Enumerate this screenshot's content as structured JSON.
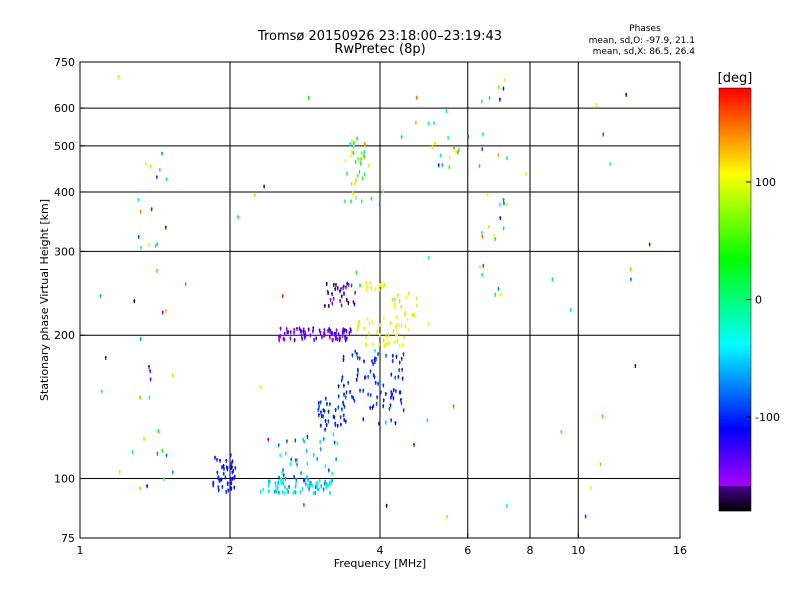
{
  "header": {
    "title_line1": "Tromsø 20150926 23:18:00–23:19:43",
    "title_line2": "RwPretec (8p)"
  },
  "stats": {
    "label": "Phases",
    "line_o": "mean, sd,O:  -97.9, 21.1",
    "line_x": "mean, sd,X:   86.5, 26.4"
  },
  "colorbar": {
    "label": "[deg]",
    "min": -180,
    "max": 180,
    "ticks": [
      "100",
      "0",
      "-100"
    ],
    "tick_values": [
      100,
      0,
      -100
    ]
  },
  "chart_data": {
    "type": "scatter",
    "xlabel": "Frequency [MHz]",
    "ylabel": "Stationary phase Virtual Height [km]",
    "xscale": "log2",
    "yscale": "log",
    "xlim": [
      1,
      16
    ],
    "ylim": [
      75,
      750
    ],
    "xticks": [
      1,
      2,
      4,
      6,
      8,
      10,
      16
    ],
    "xtick_labels": [
      "1",
      "2",
      "4",
      "6",
      "8",
      "10",
      "16"
    ],
    "yticks": [
      75,
      100,
      200,
      300,
      400,
      500,
      600,
      750
    ],
    "ytick_labels": [
      "75",
      "100",
      "200",
      "300",
      "400",
      "500",
      "600",
      "750"
    ],
    "x_gridlines": [
      2,
      4,
      6,
      8,
      10
    ],
    "y_gridlines": [
      100,
      200,
      300,
      400,
      500,
      600
    ],
    "clusters": [
      {
        "x": [
          1.85,
          2.05
        ],
        "y": [
          92,
          112
        ],
        "phase": [
          -120,
          -90
        ],
        "n": 45
      },
      {
        "x": [
          2.3,
          3.2
        ],
        "y": [
          93,
          100
        ],
        "phase": [
          -80,
          -10
        ],
        "n": 70
      },
      {
        "x": [
          2.5,
          3.3
        ],
        "y": [
          97,
          125
        ],
        "phase": [
          -100,
          -20
        ],
        "n": 40
      },
      {
        "x": [
          2.5,
          3.5
        ],
        "y": [
          195,
          207
        ],
        "phase": [
          -160,
          -120
        ],
        "n": 80
      },
      {
        "x": [
          3.1,
          3.6
        ],
        "y": [
          230,
          260
        ],
        "phase": [
          -170,
          -130
        ],
        "n": 30
      },
      {
        "x": [
          3.0,
          3.4
        ],
        "y": [
          125,
          150
        ],
        "phase": [
          -110,
          -90
        ],
        "n": 30
      },
      {
        "x": [
          3.3,
          4.5
        ],
        "y": [
          130,
          185
        ],
        "phase": [
          -110,
          -85
        ],
        "n": 90
      },
      {
        "x": [
          3.6,
          4.5
        ],
        "y": [
          190,
          220
        ],
        "phase": [
          85,
          115
        ],
        "n": 40
      },
      {
        "x": [
          3.7,
          4.1
        ],
        "y": [
          248,
          258
        ],
        "phase": [
          100,
          115
        ],
        "n": 15
      },
      {
        "x": [
          4.2,
          5.0
        ],
        "y": [
          205,
          245
        ],
        "phase": [
          75,
          120
        ],
        "n": 20
      },
      {
        "x": [
          3.4,
          3.8
        ],
        "y": [
          380,
          520
        ],
        "phase": [
          -40,
          140
        ],
        "n": 35
      },
      {
        "x": [
          5.0,
          5.8
        ],
        "y": [
          440,
          600
        ],
        "phase": [
          -100,
          150
        ],
        "n": 15
      },
      {
        "x": [
          6.3,
          7.2
        ],
        "y": [
          240,
          700
        ],
        "phase": [
          -120,
          160
        ],
        "n": 25
      },
      {
        "x": [
          1.3,
          1.5
        ],
        "y": [
          95,
          480
        ],
        "phase": [
          -150,
          150
        ],
        "n": 30
      },
      {
        "x": [
          1.05,
          15
        ],
        "y": [
          80,
          720
        ],
        "phase": [
          -180,
          180
        ],
        "n": 60
      }
    ]
  }
}
